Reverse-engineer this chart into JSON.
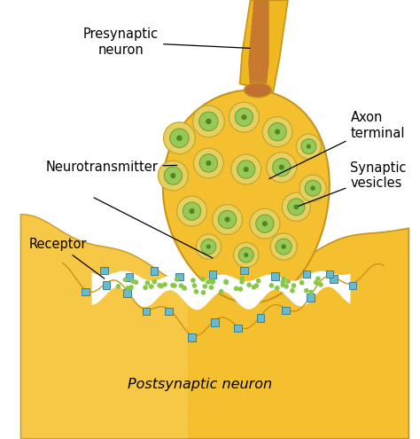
{
  "bg_color": "#ffffff",
  "terminal_fill": "#F5C030",
  "terminal_edge": "#C8941A",
  "terminal_inner_fill": "#F0B820",
  "postsynaptic_fill": "#F5C030",
  "postsynaptic_edge": "#C8941A",
  "postsynaptic_highlight": "#FAD870",
  "axon_outer_fill": "#F0B820",
  "axon_outer_edge": "#C8941A",
  "axon_inner_fill": "#C07030",
  "vesicle_outer_fill": "#E8D060",
  "vesicle_outer_edge": "#C0A830",
  "vesicle_inner_fill": "#98C858",
  "vesicle_inner_edge": "#68A030",
  "vesicle_dot": "#50881A",
  "receptor_fill": "#6BBAC8",
  "receptor_edge": "#3A8098",
  "nt_dot_color": "#88C848",
  "cleft_white": "#ffffff",
  "label_fs": 10.5,
  "figsize": [
    4.74,
    4.95
  ],
  "dpi": 100,
  "labels": {
    "presynaptic": "Presynaptic\nneuron",
    "axon_terminal": "Axon\nterminal",
    "synaptic_vesicles": "Synaptic\nvesicles",
    "neurotransmitter": "Neurotransmitter",
    "receptor": "Receptor",
    "postsynaptic": "Postsynaptic neuron"
  }
}
